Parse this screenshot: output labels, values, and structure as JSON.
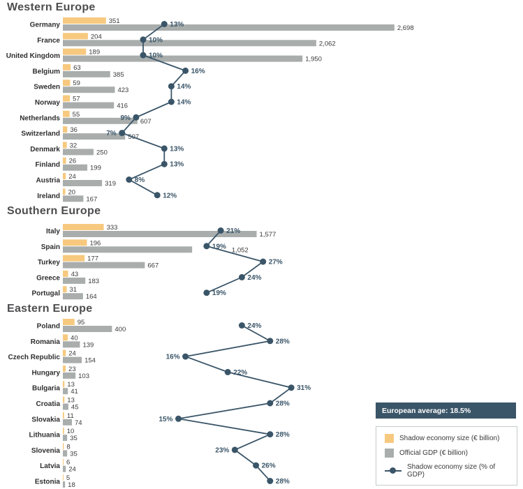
{
  "badge": {
    "text": "European average: 18.5%"
  },
  "legend": {
    "items": [
      {
        "icon": "yellow-square-icon",
        "label": "Shadow economy size (€ billion)"
      },
      {
        "icon": "gray-square-icon",
        "label": "Official GDP (€ billion)"
      },
      {
        "icon": "line-dot-icon",
        "label": "Shadow economy size (% of GDP)"
      }
    ]
  },
  "colors": {
    "shadow_bar": "#F7C97E",
    "gdp_bar": "#A9AEAD",
    "percent": "#3A5568",
    "header_text": "#4D4D4F",
    "value_text": "#3A3A3C",
    "badge_bg": "#3A5568",
    "badge_text": "#FFFFFF"
  },
  "chart_data": {
    "type": "bar",
    "units": {
      "bars": "€ billion",
      "dots": "% of GDP"
    },
    "legend_position": "bottom-right",
    "grid": false,
    "sections": [
      {
        "title": "Western Europe",
        "rows": [
          {
            "country": "Germany",
            "shadow": 351,
            "gdp": 2698,
            "pct": 13
          },
          {
            "country": "France",
            "shadow": 204,
            "gdp": 2062,
            "pct": 10
          },
          {
            "country": "United Kingdom",
            "shadow": 189,
            "gdp": 1950,
            "pct": 10
          },
          {
            "country": "Belgium",
            "shadow": 63,
            "gdp": 385,
            "pct": 16
          },
          {
            "country": "Sweden",
            "shadow": 59,
            "gdp": 423,
            "pct": 14
          },
          {
            "country": "Norway",
            "shadow": 57,
            "gdp": 416,
            "pct": 14
          },
          {
            "country": "Netherlands",
            "shadow": 55,
            "gdp": 607,
            "pct": 9,
            "label_side": "left"
          },
          {
            "country": "Switzerland",
            "shadow": 36,
            "gdp": 507,
            "pct": 7,
            "label_side": "left"
          },
          {
            "country": "Denmark",
            "shadow": 32,
            "gdp": 250,
            "pct": 13
          },
          {
            "country": "Finland",
            "shadow": 26,
            "gdp": 199,
            "pct": 13
          },
          {
            "country": "Austria",
            "shadow": 24,
            "gdp": 319,
            "pct": 8
          },
          {
            "country": "Ireland",
            "shadow": 20,
            "gdp": 167,
            "pct": 12
          }
        ]
      },
      {
        "title": "Southern Europe",
        "rows": [
          {
            "country": "Italy",
            "shadow": 333,
            "gdp": 1577,
            "pct": 21
          },
          {
            "country": "Spain",
            "shadow": 196,
            "gdp": 1052,
            "pct": 19,
            "gdp_after_pct": true
          },
          {
            "country": "Turkey",
            "shadow": 177,
            "gdp": 667,
            "pct": 27
          },
          {
            "country": "Greece",
            "shadow": 43,
            "gdp": 183,
            "pct": 24
          },
          {
            "country": "Portugal",
            "shadow": 31,
            "gdp": 164,
            "pct": 19
          }
        ]
      },
      {
        "title": "Eastern Europe",
        "rows": [
          {
            "country": "Poland",
            "shadow": 95,
            "gdp": 400,
            "pct": 24
          },
          {
            "country": "Romania",
            "shadow": 40,
            "gdp": 139,
            "pct": 28
          },
          {
            "country": "Czech Republic",
            "shadow": 24,
            "gdp": 154,
            "pct": 16,
            "label_side": "left"
          },
          {
            "country": "Hungary",
            "shadow": 23,
            "gdp": 103,
            "pct": 22
          },
          {
            "country": "Bulgaria",
            "shadow": 13,
            "gdp": 41,
            "pct": 31
          },
          {
            "country": "Croatia",
            "shadow": 13,
            "gdp": 45,
            "pct": 28
          },
          {
            "country": "Slovakia",
            "shadow": 11,
            "gdp": 74,
            "pct": 15,
            "label_side": "left"
          },
          {
            "country": "Lithuania",
            "shadow": 10,
            "gdp": 35,
            "pct": 28
          },
          {
            "country": "Slovenia",
            "shadow": 8,
            "gdp": 35,
            "pct": 23,
            "label_side": "left"
          },
          {
            "country": "Latvia",
            "shadow": 6,
            "gdp": 24,
            "pct": 26
          },
          {
            "country": "Estonia",
            "shadow": 5,
            "gdp": 18,
            "pct": 28
          }
        ]
      }
    ]
  }
}
